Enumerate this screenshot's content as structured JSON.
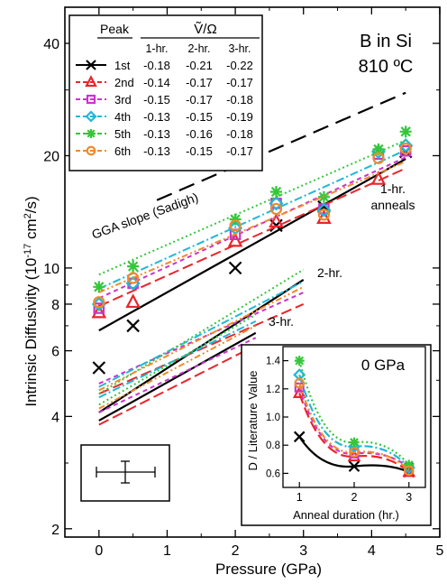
{
  "chart_data": [
    {
      "type": "scatter",
      "title": "B in Si",
      "subtitle": "810 ºC",
      "xlabel": "Pressure (GPa)",
      "ylabel_main": "Intrinsic Diffusivity (10",
      "ylabel_sup": "-17",
      "ylabel_tail": " cm",
      "ylabel_sup2": "2",
      "ylabel_end": "/s)",
      "xlim": [
        -0.5,
        5
      ],
      "ylim": [
        1.9,
        50
      ],
      "yscale": "log",
      "xticks": [
        0,
        1,
        2,
        3,
        4,
        5
      ],
      "yticks": [
        2,
        4,
        6,
        8,
        10,
        20,
        40
      ],
      "ymajor_labels": [
        2,
        4,
        6,
        8,
        10,
        20,
        40
      ],
      "yminor": [
        3,
        5,
        7,
        9,
        30
      ],
      "table": {
        "header_peak": "Peak",
        "header_vol": "Ṽ/Ω",
        "cols": [
          "1-hr.",
          "2-hr.",
          "3-hr."
        ],
        "rows": [
          {
            "peak": "1st",
            "v": [
              "-0.18",
              "-0.21",
              "-0.22"
            ]
          },
          {
            "peak": "2nd",
            "v": [
              "-0.14",
              "-0.17",
              "-0.17"
            ]
          },
          {
            "peak": "3rd",
            "v": [
              "-0.15",
              "-0.17",
              "-0.18"
            ]
          },
          {
            "peak": "4th",
            "v": [
              "-0.13",
              "-0.15",
              "-0.19"
            ]
          },
          {
            "peak": "5th",
            "v": [
              "-0.13",
              "-0.16",
              "-0.18"
            ]
          },
          {
            "peak": "6th",
            "v": [
              "-0.13",
              "-0.15",
              "-0.17"
            ]
          }
        ]
      },
      "series": [
        {
          "name": "1st",
          "color": "#000000",
          "marker": "x",
          "dash": "none",
          "x": [
            0,
            0.5,
            2,
            2.6,
            3.3,
            4.5
          ],
          "y": [
            5.4,
            7.0,
            10.0,
            13.0,
            14.6,
            20.5
          ],
          "fit1": [
            [
              0,
              6.8
            ],
            [
              4.5,
              19.6
            ]
          ],
          "fit2": [
            [
              0,
              4.1
            ],
            [
              3,
              9.3
            ]
          ],
          "fit3": [
            [
              0,
              3.9
            ],
            [
              2.3,
              6.7
            ]
          ]
        },
        {
          "name": "2nd",
          "color": "#e8262b",
          "marker": "triangle",
          "dash": "12,5",
          "x": [
            0,
            0.5,
            2,
            2.6,
            3.3,
            4.1
          ],
          "y": [
            7.6,
            8.1,
            11.8,
            13.3,
            13.6,
            17.3
          ],
          "fit1": [
            [
              0,
              7.9
            ],
            [
              4.5,
              18.5
            ]
          ],
          "fit2": [
            [
              0,
              4.6
            ],
            [
              3,
              8.0
            ]
          ],
          "fit3": [
            [
              0,
              3.8
            ],
            [
              2.3,
              6.2
            ]
          ]
        },
        {
          "name": "3rd",
          "color": "#cc33cc",
          "marker": "square",
          "dash": "5,4",
          "x": [
            0,
            0.5,
            2,
            2.6,
            3.3,
            4.1,
            4.5
          ],
          "y": [
            7.8,
            9.1,
            12.3,
            14.9,
            14.4,
            20.2,
            20.6
          ],
          "fit1": [
            [
              0,
              8.3
            ],
            [
              4.5,
              19.8
            ]
          ],
          "fit2": [
            [
              0,
              4.9
            ],
            [
              3,
              8.6
            ]
          ],
          "fit3": [
            [
              0,
              4.1
            ],
            [
              2.3,
              6.5
            ]
          ]
        },
        {
          "name": "4th",
          "color": "#1fb8d8",
          "marker": "diamond",
          "dash": "9,3,2,3",
          "x": [
            0,
            0.5,
            2,
            2.6,
            3.3,
            4.1,
            4.5
          ],
          "y": [
            8.0,
            9.1,
            12.8,
            14.9,
            14.3,
            20.5,
            21.3
          ],
          "fit1": [
            [
              0,
              8.8
            ],
            [
              4.5,
              20.7
            ]
          ],
          "fit2": [
            [
              0,
              4.8
            ],
            [
              3,
              9.2
            ]
          ],
          "fit3": [
            [
              0,
              4.5
            ],
            [
              2.3,
              7.2
            ]
          ]
        },
        {
          "name": "5th",
          "color": "#33c73a",
          "marker": "star",
          "dash": "2,3",
          "x": [
            0,
            0.5,
            2,
            2.6,
            3.3,
            4.1,
            4.5
          ],
          "y": [
            8.9,
            10.1,
            13.5,
            16.0,
            15.5,
            20.8,
            23.2
          ],
          "fit1": [
            [
              0,
              9.6
            ],
            [
              4.5,
              22.0
            ]
          ],
          "fit2": [
            [
              0,
              4.6
            ],
            [
              3,
              9.9
            ]
          ],
          "fit3": [
            [
              0,
              4.3
            ],
            [
              2.3,
              7.5
            ]
          ]
        },
        {
          "name": "6th",
          "color": "#ef8a2a",
          "marker": "circle",
          "dash": "7,3,2,3,2,3",
          "x": [
            0,
            0.5,
            2,
            2.6,
            3.3,
            4.1,
            4.5
          ],
          "y": [
            8.1,
            9.4,
            13.0,
            14.4,
            13.9,
            19.7,
            20.9
          ],
          "fit1": [
            [
              0,
              8.6
            ],
            [
              4.5,
              19.3
            ]
          ],
          "fit2": [
            [
              0,
              4.7
            ],
            [
              3,
              8.9
            ]
          ],
          "fit3": [
            [
              0,
              4.2
            ],
            [
              2.3,
              7.0
            ]
          ]
        }
      ],
      "gga_line": {
        "label": "GGA slope (Sadigh)",
        "x": [
          0.85,
          4.5
        ],
        "y": [
          15.2,
          29.5
        ]
      },
      "annotations": {
        "anneal1": "1-hr.",
        "anneal1b": "anneals",
        "anneal2": "2-hr.",
        "anneal3": "3-hr."
      }
    },
    {
      "type": "scatter",
      "title": "0 GPa",
      "xlabel": "Anneal duration (hr.)",
      "ylabel": "D / Literature Value",
      "xlim": [
        0.7,
        3.3
      ],
      "ylim": [
        0.5,
        1.5
      ],
      "xticks": [
        1,
        2,
        3
      ],
      "yticks": [
        0.6,
        0.8,
        1.0,
        1.2,
        1.4
      ],
      "series": [
        {
          "name": "1st",
          "y": [
            0.86,
            0.65,
            0.61
          ]
        },
        {
          "name": "2nd",
          "y": [
            1.17,
            0.72,
            0.61
          ]
        },
        {
          "name": "3rd",
          "y": [
            1.21,
            0.74,
            0.64
          ]
        },
        {
          "name": "4th",
          "y": [
            1.3,
            0.79,
            0.64
          ]
        },
        {
          "name": "5th",
          "y": [
            1.4,
            0.82,
            0.66
          ]
        },
        {
          "name": "6th",
          "y": [
            1.24,
            0.75,
            0.62
          ]
        }
      ],
      "x": [
        1,
        2,
        3
      ]
    }
  ]
}
